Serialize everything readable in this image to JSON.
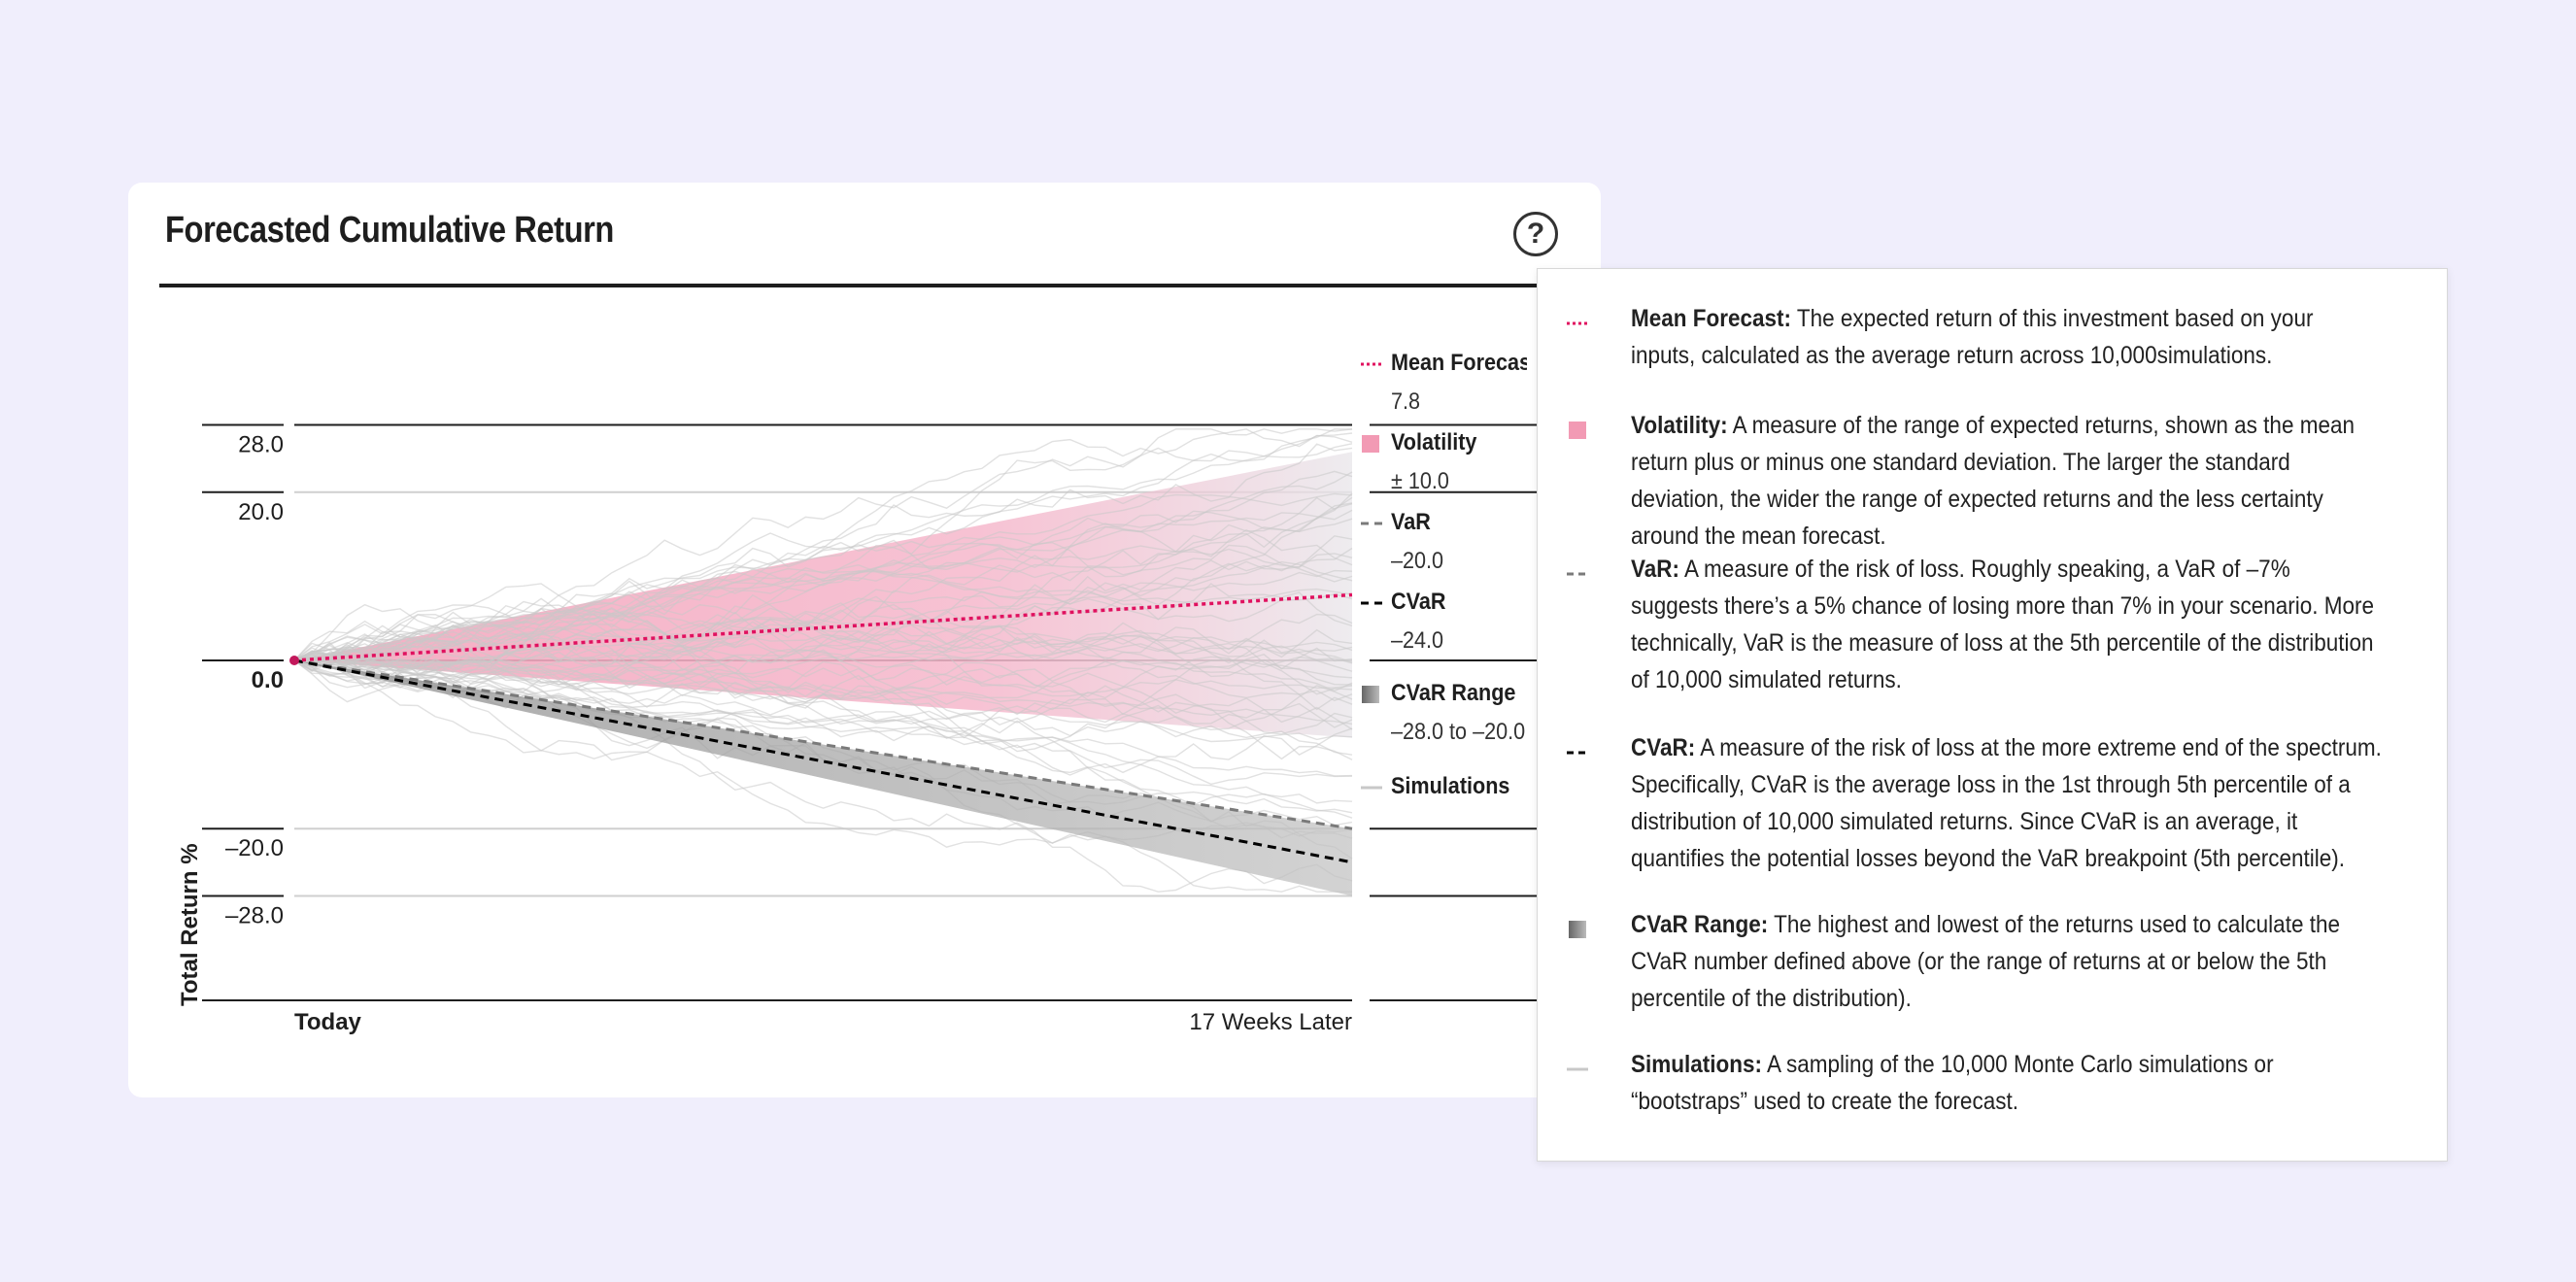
{
  "card": {
    "title": "Forecasted Cumulative Return"
  },
  "chart_data": {
    "type": "line",
    "title": "Forecasted Cumulative Return",
    "ylabel": "Total Return %",
    "x_labels": [
      "Today",
      "17 Weeks Later"
    ],
    "y_ticks": [
      "28.0",
      "20.0",
      "0.0",
      "–20.0",
      "–28.0"
    ],
    "y_tick_values": [
      28,
      20,
      0,
      -20,
      -28
    ],
    "ylim": [
      -28,
      28
    ],
    "start_value": 0,
    "mean_forecast_end": 7.8,
    "volatility": 10.0,
    "var_end": -20.0,
    "cvar_end": -24.0,
    "cvar_range": [
      -28.0,
      -20.0
    ],
    "simulations_shown": 60,
    "colors": {
      "mean": "#e0115f",
      "volatility": "#f29ab4",
      "var": "#7a7a7a",
      "cvar": "#000000",
      "cvar_range": "#9a9a9a",
      "simulations": "#c8c8c8"
    }
  },
  "legend": [
    {
      "name": "Mean Forecast",
      "value": "7.8",
      "icon": "dotted-line-icon"
    },
    {
      "name": "Volatility",
      "value": "± 10.0",
      "icon": "pink-square-icon"
    },
    {
      "name": "VaR",
      "value": "–20.0",
      "icon": "dashed-line-icon"
    },
    {
      "name": "CVaR",
      "value": "–24.0",
      "icon": "dashed-line-icon"
    },
    {
      "name": "CVaR Range",
      "value": "–28.0 to –20.0",
      "icon": "gray-square-icon"
    },
    {
      "name": "Simulations",
      "value": "",
      "icon": "solid-line-icon"
    }
  ],
  "help_panel": {
    "entries": [
      {
        "term": "Mean Forecast:",
        "text": " The expected return of this investment based on your inputs, calculated as the average return across 10,000simulations."
      },
      {
        "term": "Volatility:",
        "text": " A measure of the range of expected returns, shown as the mean return plus or minus one standard deviation. The larger the standard deviation, the wider the range of expected returns and the less certainty around the mean forecast."
      },
      {
        "term": "VaR:",
        "text": " A measure of the risk of loss. Roughly speaking, a VaR of –7% suggests there’s a 5% chance of losing more than 7% in your scenario. More technically, VaR is the measure of loss at the 5th percentile of the distribution of 10,000 simulated returns."
      },
      {
        "term": "CVaR:",
        "text": " A measure of the risk of loss at the more extreme end of the spectrum. Specifically, CVaR is the average loss in the 1st through 5th percentile of a distribution of 10,000 simulated returns. Since CVaR is an average, it quantifies the potential losses beyond the VaR breakpoint (5th percentile)."
      },
      {
        "term": "CVaR Range:",
        "text": " The highest and lowest of the returns used to calculate the CVaR number defined above (or the range of returns at or below the 5th percentile of the distribution)."
      },
      {
        "term": "Simulations:",
        "text": " A sampling of the 10,000 Monte Carlo simulations or “bootstraps” used to create the forecast."
      }
    ]
  }
}
